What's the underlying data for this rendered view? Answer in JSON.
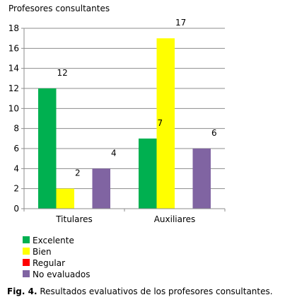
{
  "chart_data": {
    "type": "bar",
    "title": "Profesores consultantes",
    "xlabel": "",
    "ylabel": "",
    "ylim": [
      0,
      18
    ],
    "yticks": [
      0,
      2,
      4,
      6,
      8,
      10,
      12,
      14,
      16,
      18
    ],
    "categories": [
      "Titulares",
      "Auxiliares"
    ],
    "grid": true,
    "legend_position": "bottom-left",
    "series": [
      {
        "name": "Excelente",
        "color": "#00b050",
        "values": [
          12,
          7
        ]
      },
      {
        "name": "Bien",
        "color": "#ffff00",
        "values": [
          2,
          17
        ]
      },
      {
        "name": "Regular",
        "color": "#ff0000",
        "values": [
          0,
          0
        ]
      },
      {
        "name": "No evaluados",
        "color": "#8064a2",
        "values": [
          4,
          6
        ]
      }
    ]
  },
  "caption": {
    "label": "Fig. 4.",
    "text": " Resultados evaluativos de los profesores consultantes."
  }
}
